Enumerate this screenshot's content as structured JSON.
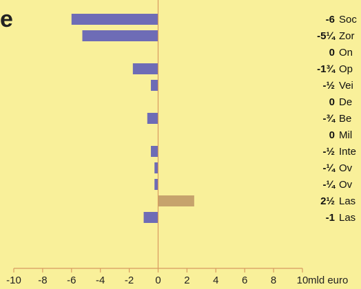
{
  "title_fragment": "e",
  "colors": {
    "background": "#f9f09a",
    "bar_negative": "#6e6cb6",
    "bar_positive": "#c6a36c",
    "axis": "#d89a60"
  },
  "chart_data": {
    "type": "bar",
    "orientation": "horizontal",
    "categories": [
      "Soc",
      "Zor",
      "On",
      "Op",
      "Vei",
      "De",
      "Be",
      "Mil",
      "Inte",
      "Ov",
      "Ov",
      "Las",
      "Las"
    ],
    "values": [
      -6,
      -5.25,
      0,
      -1.75,
      -0.5,
      0,
      -0.75,
      0,
      -0.5,
      -0.25,
      -0.25,
      2.5,
      -1
    ],
    "value_labels": [
      "-6",
      "-5¼",
      "0",
      "-1¾",
      "-½",
      "0",
      "-¾",
      "0",
      "-½",
      "-¼",
      "-¼",
      "2½",
      "-1"
    ],
    "xlim": [
      -10,
      10
    ],
    "xticks": [
      -10,
      -8,
      -6,
      -4,
      -2,
      0,
      2,
      4,
      6,
      8,
      10
    ],
    "xlabel": "mld euro",
    "grid": false
  }
}
